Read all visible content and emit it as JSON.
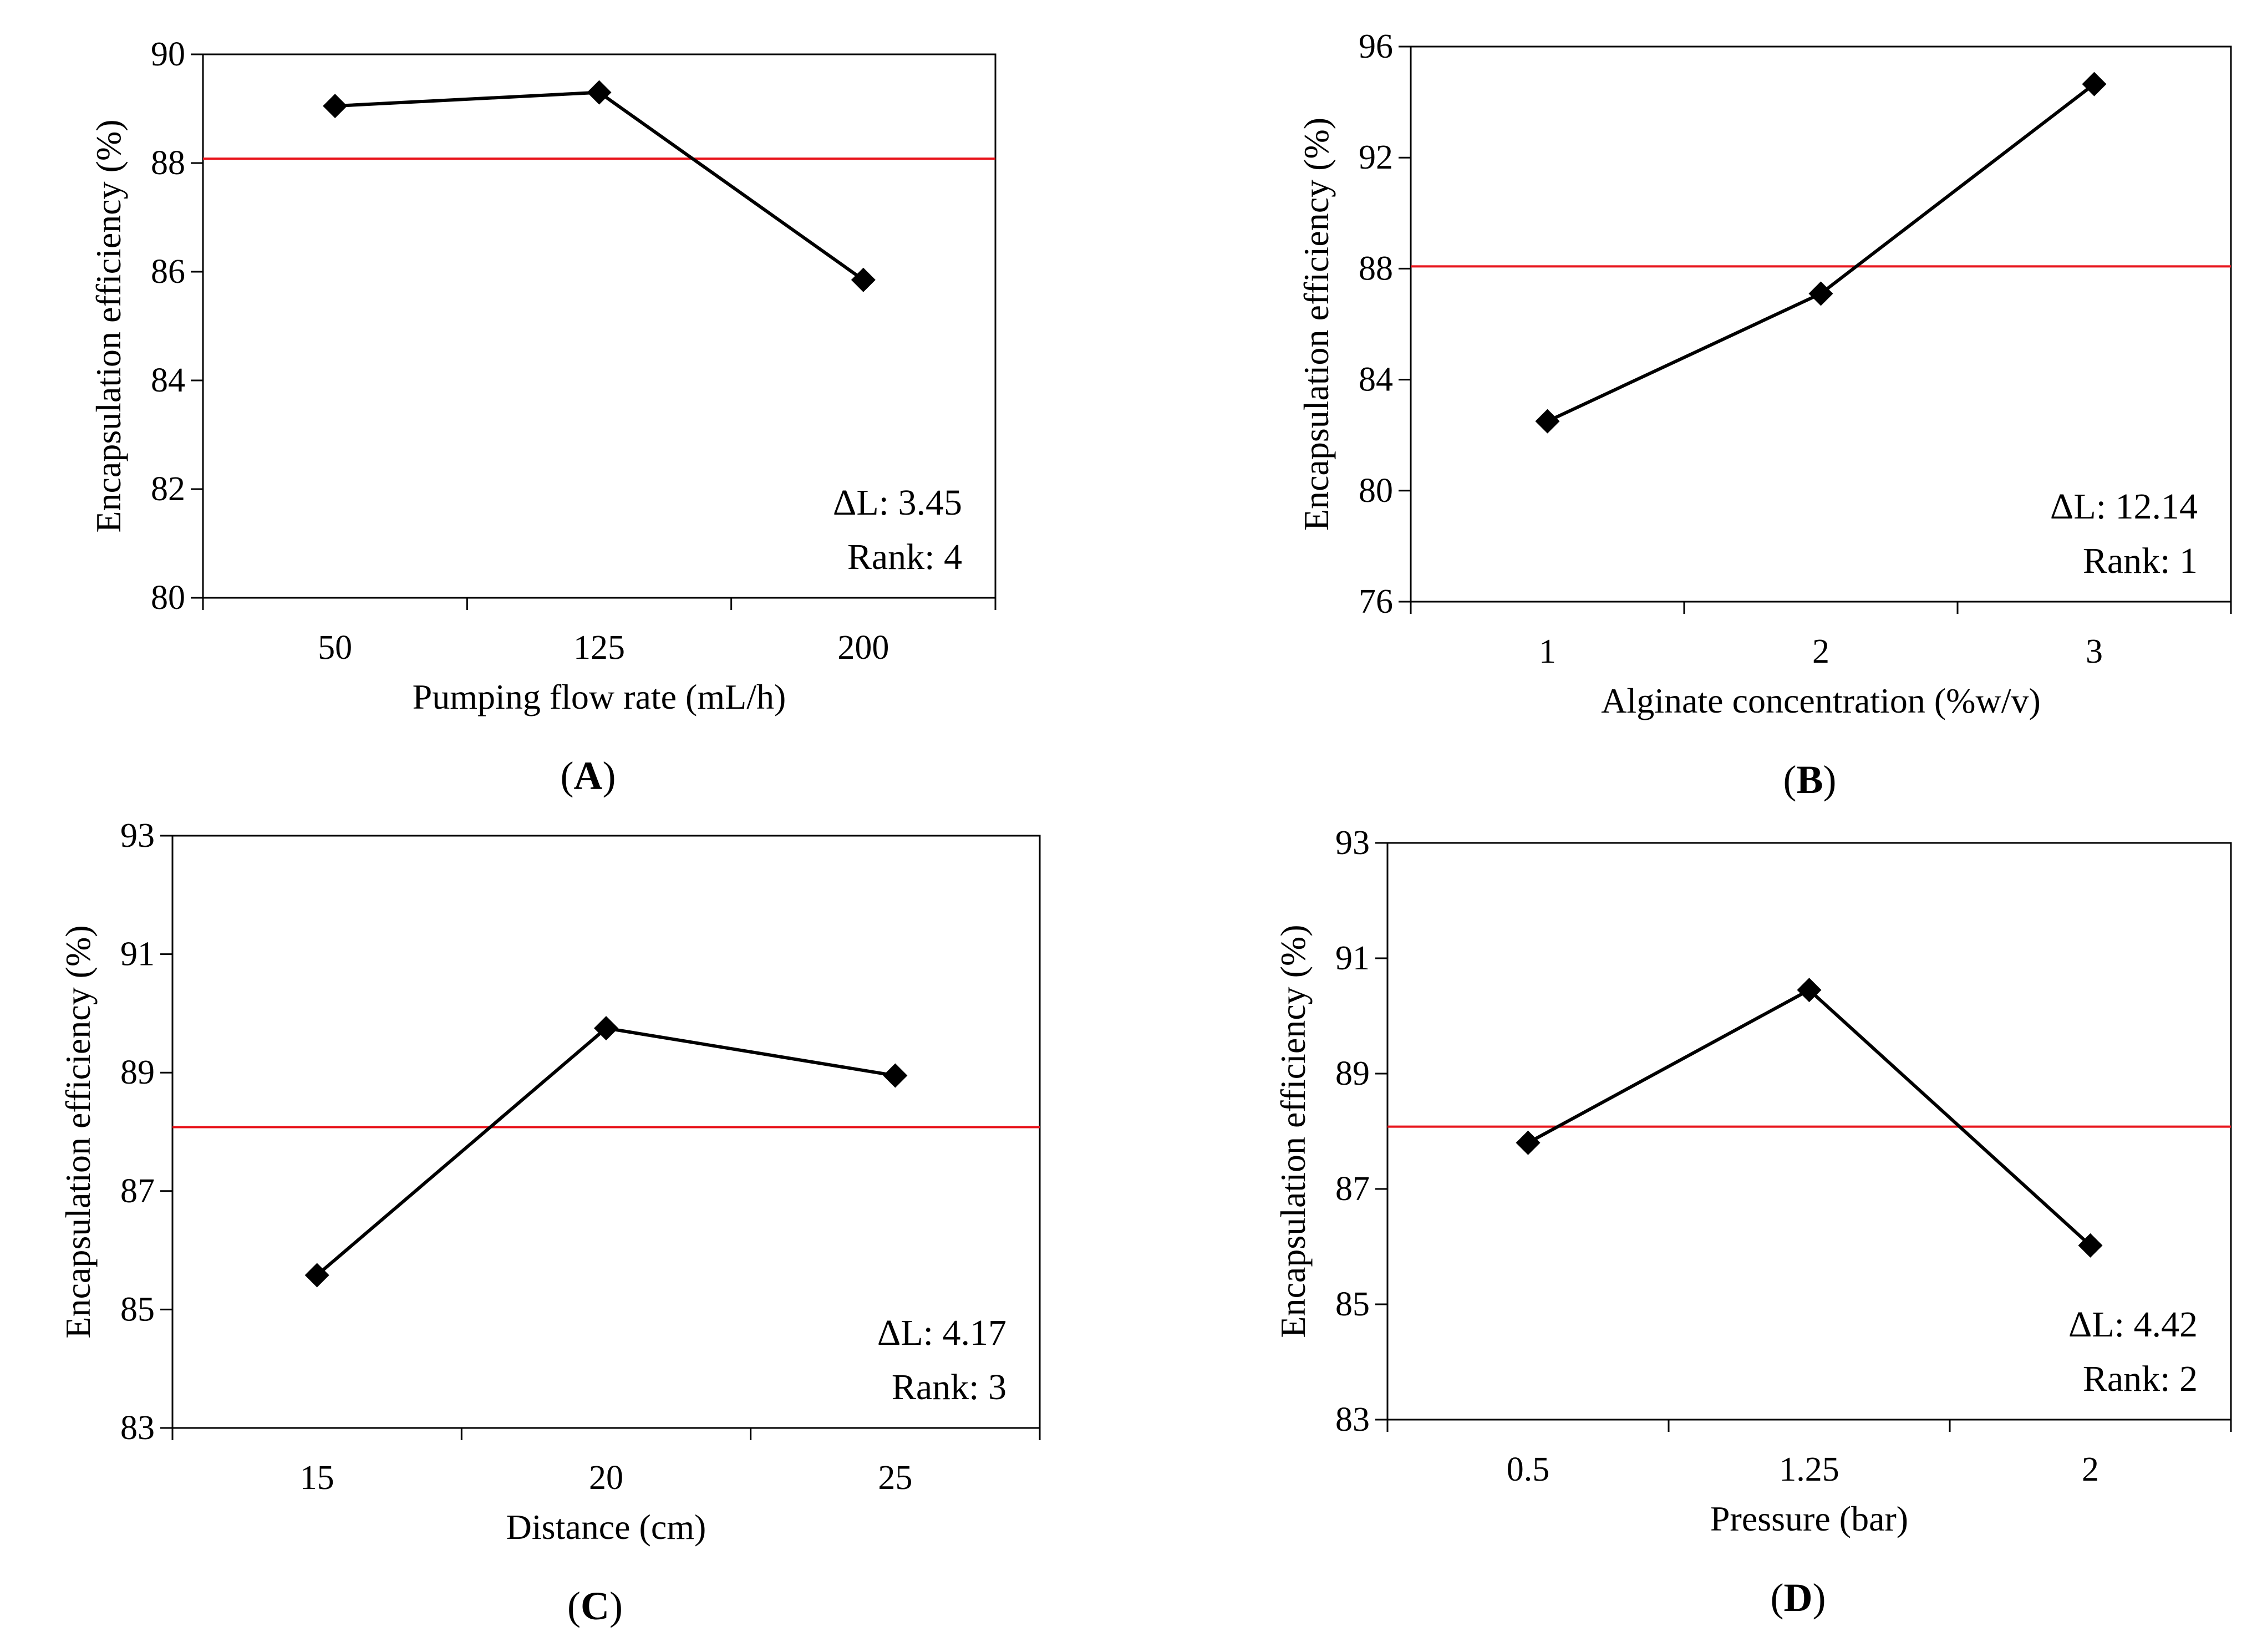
{
  "chart_data": [
    {
      "type": "line",
      "panel_label": "A",
      "xlabel": "Pumping flow rate (mL/h)",
      "ylabel": "Encapsulation efficiency (%)",
      "categories": [
        "50",
        "125",
        "200"
      ],
      "values": [
        89.05,
        89.3,
        85.85
      ],
      "ylim": [
        80,
        90
      ],
      "yticks": [
        "80",
        "82",
        "84",
        "86",
        "88",
        "90"
      ],
      "mean_line": 88.08,
      "annotation": [
        "ΔL: 3.45",
        "Rank: 4"
      ],
      "line_color": "#000000",
      "mean_line_color": "#e8141b"
    },
    {
      "type": "line",
      "panel_label": "B",
      "xlabel": "Alginate concentration (%w/v)",
      "ylabel": "Encapsulation efficiency (%)",
      "categories": [
        "1",
        "2",
        "3"
      ],
      "values": [
        82.5,
        87.1,
        94.65
      ],
      "ylim": [
        76,
        96
      ],
      "yticks": [
        "76",
        "80",
        "84",
        "88",
        "92",
        "96"
      ],
      "mean_line": 88.08,
      "annotation": [
        "ΔL: 12.14",
        "Rank: 1"
      ],
      "line_color": "#000000",
      "mean_line_color": "#e8141b"
    },
    {
      "type": "line",
      "panel_label": "C",
      "xlabel": "Distance (cm)",
      "ylabel": "Encapsulation efficiency (%)",
      "categories": [
        "15",
        "20",
        "25"
      ],
      "values": [
        85.58,
        89.75,
        88.95
      ],
      "ylim": [
        83,
        93
      ],
      "yticks": [
        "83",
        "85",
        "87",
        "89",
        "91",
        "93"
      ],
      "mean_line": 88.08,
      "annotation": [
        "ΔL: 4.17",
        "Rank: 3"
      ],
      "line_color": "#000000",
      "mean_line_color": "#e8141b"
    },
    {
      "type": "line",
      "panel_label": "D",
      "xlabel": "Pressure (bar)",
      "ylabel": "Encapsulation efficiency (%)",
      "categories": [
        "0.5",
        "1.25",
        "2"
      ],
      "values": [
        87.8,
        90.45,
        86.02
      ],
      "ylim": [
        83,
        93
      ],
      "yticks": [
        "83",
        "85",
        "87",
        "89",
        "91",
        "93"
      ],
      "mean_line": 88.08,
      "annotation": [
        "ΔL: 4.42",
        "Rank: 2"
      ],
      "line_color": "#000000",
      "mean_line_color": "#e8141b"
    }
  ]
}
